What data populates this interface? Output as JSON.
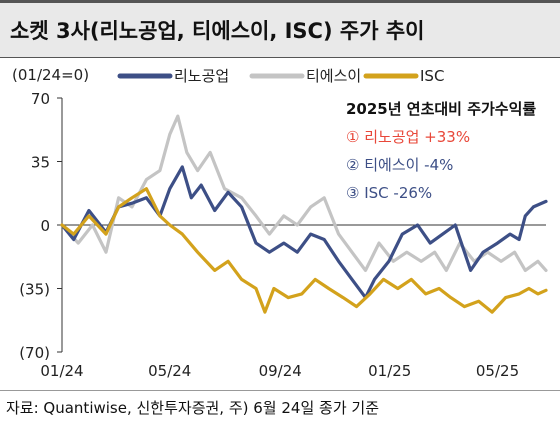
{
  "title": "소켓 3사(리노공업, 티에스이, ISC) 주가 추이",
  "source": "자료: Quantiwise, 신한투자증권, 주) 6월 24일 종가 기준",
  "chart_data": {
    "type": "line",
    "unit_label": "(01/24=0)",
    "y_ticks": [
      "70",
      "35",
      "0",
      "(35)",
      "(70)"
    ],
    "y_tick_values": [
      70,
      35,
      0,
      -35,
      -70
    ],
    "ylim": [
      -70,
      70
    ],
    "x_tick_labels": [
      "01/24",
      "05/24",
      "09/24",
      "01/25",
      "05/25"
    ],
    "x_tick_dates": [
      "2024-01-02",
      "2024-05-01",
      "2024-09-01",
      "2025-01-01",
      "2025-05-01"
    ],
    "x_start": "2024-01-02",
    "x_end": "2025-06-24",
    "legend": [
      {
        "name": "리노공업",
        "color": "#3d4f86"
      },
      {
        "name": "티에스이",
        "color": "#c4c4c4"
      },
      {
        "name": "ISC",
        "color": "#d3a21c"
      }
    ],
    "annotation": {
      "heading": "2025년 연초대비 주가수익률",
      "lines": [
        {
          "text": "① 리노공업 +33%",
          "color": "#e8483a"
        },
        {
          "text": "② 티에스이 -4%",
          "color": "#3d4f86"
        },
        {
          "text": "③ ISC -26%",
          "color": "#3d4f86"
        }
      ]
    },
    "series": [
      {
        "name": "리노공업",
        "color": "#3d4f86",
        "points": [
          [
            "2024-01-02",
            0
          ],
          [
            "2024-01-15",
            -8
          ],
          [
            "2024-02-01",
            8
          ],
          [
            "2024-02-20",
            -4
          ],
          [
            "2024-03-05",
            10
          ],
          [
            "2024-03-20",
            12
          ],
          [
            "2024-04-05",
            15
          ],
          [
            "2024-04-20",
            5
          ],
          [
            "2024-05-01",
            20
          ],
          [
            "2024-05-15",
            32
          ],
          [
            "2024-05-25",
            15
          ],
          [
            "2024-06-05",
            22
          ],
          [
            "2024-06-20",
            8
          ],
          [
            "2024-07-05",
            18
          ],
          [
            "2024-07-20",
            10
          ],
          [
            "2024-08-05",
            -10
          ],
          [
            "2024-08-20",
            -15
          ],
          [
            "2024-09-05",
            -10
          ],
          [
            "2024-09-20",
            -15
          ],
          [
            "2024-10-05",
            -5
          ],
          [
            "2024-10-20",
            -8
          ],
          [
            "2024-11-05",
            -20
          ],
          [
            "2024-11-20",
            -30
          ],
          [
            "2024-12-05",
            -40
          ],
          [
            "2024-12-15",
            -30
          ],
          [
            "2024-12-31",
            -20
          ],
          [
            "2025-01-15",
            -5
          ],
          [
            "2025-02-01",
            0
          ],
          [
            "2025-02-15",
            -10
          ],
          [
            "2025-03-01",
            -5
          ],
          [
            "2025-03-15",
            0
          ],
          [
            "2025-04-01",
            -25
          ],
          [
            "2025-04-15",
            -15
          ],
          [
            "2025-05-01",
            -10
          ],
          [
            "2025-05-15",
            -5
          ],
          [
            "2025-05-25",
            -8
          ],
          [
            "2025-06-01",
            5
          ],
          [
            "2025-06-10",
            10
          ],
          [
            "2025-06-24",
            13
          ]
        ]
      },
      {
        "name": "티에스이",
        "color": "#c4c4c4",
        "points": [
          [
            "2024-01-02",
            0
          ],
          [
            "2024-01-20",
            -10
          ],
          [
            "2024-02-05",
            0
          ],
          [
            "2024-02-20",
            -15
          ],
          [
            "2024-03-05",
            15
          ],
          [
            "2024-03-20",
            10
          ],
          [
            "2024-04-05",
            25
          ],
          [
            "2024-04-20",
            30
          ],
          [
            "2024-05-01",
            50
          ],
          [
            "2024-05-10",
            60
          ],
          [
            "2024-05-20",
            40
          ],
          [
            "2024-06-01",
            30
          ],
          [
            "2024-06-15",
            40
          ],
          [
            "2024-07-01",
            20
          ],
          [
            "2024-07-20",
            15
          ],
          [
            "2024-08-05",
            5
          ],
          [
            "2024-08-20",
            -5
          ],
          [
            "2024-09-05",
            5
          ],
          [
            "2024-09-20",
            0
          ],
          [
            "2024-10-05",
            10
          ],
          [
            "2024-10-20",
            15
          ],
          [
            "2024-11-05",
            -5
          ],
          [
            "2024-11-20",
            -15
          ],
          [
            "2024-12-05",
            -25
          ],
          [
            "2024-12-20",
            -10
          ],
          [
            "2025-01-05",
            -20
          ],
          [
            "2025-01-20",
            -15
          ],
          [
            "2025-02-05",
            -20
          ],
          [
            "2025-02-20",
            -15
          ],
          [
            "2025-03-05",
            -25
          ],
          [
            "2025-03-20",
            -10
          ],
          [
            "2025-04-05",
            -20
          ],
          [
            "2025-04-20",
            -15
          ],
          [
            "2025-05-05",
            -20
          ],
          [
            "2025-05-20",
            -15
          ],
          [
            "2025-06-01",
            -25
          ],
          [
            "2025-06-15",
            -20
          ],
          [
            "2025-06-24",
            -25
          ]
        ]
      },
      {
        "name": "ISC",
        "color": "#d3a21c",
        "points": [
          [
            "2024-01-02",
            0
          ],
          [
            "2024-01-15",
            -5
          ],
          [
            "2024-02-01",
            5
          ],
          [
            "2024-02-20",
            -5
          ],
          [
            "2024-03-05",
            10
          ],
          [
            "2024-03-20",
            15
          ],
          [
            "2024-04-05",
            20
          ],
          [
            "2024-04-20",
            5
          ],
          [
            "2024-05-01",
            0
          ],
          [
            "2024-05-15",
            -5
          ],
          [
            "2024-06-01",
            -15
          ],
          [
            "2024-06-20",
            -25
          ],
          [
            "2024-07-05",
            -20
          ],
          [
            "2024-07-20",
            -30
          ],
          [
            "2024-08-05",
            -35
          ],
          [
            "2024-08-15",
            -48
          ],
          [
            "2024-08-25",
            -35
          ],
          [
            "2024-09-10",
            -40
          ],
          [
            "2024-09-25",
            -38
          ],
          [
            "2024-10-10",
            -30
          ],
          [
            "2024-10-25",
            -35
          ],
          [
            "2024-11-10",
            -40
          ],
          [
            "2024-11-25",
            -45
          ],
          [
            "2024-12-10",
            -38
          ],
          [
            "2024-12-25",
            -30
          ],
          [
            "2025-01-10",
            -35
          ],
          [
            "2025-01-25",
            -30
          ],
          [
            "2025-02-10",
            -38
          ],
          [
            "2025-02-25",
            -35
          ],
          [
            "2025-03-10",
            -40
          ],
          [
            "2025-03-25",
            -45
          ],
          [
            "2025-04-10",
            -42
          ],
          [
            "2025-04-25",
            -48
          ],
          [
            "2025-05-10",
            -40
          ],
          [
            "2025-05-25",
            -38
          ],
          [
            "2025-06-05",
            -35
          ],
          [
            "2025-06-15",
            -38
          ],
          [
            "2025-06-24",
            -36
          ]
        ]
      }
    ]
  }
}
